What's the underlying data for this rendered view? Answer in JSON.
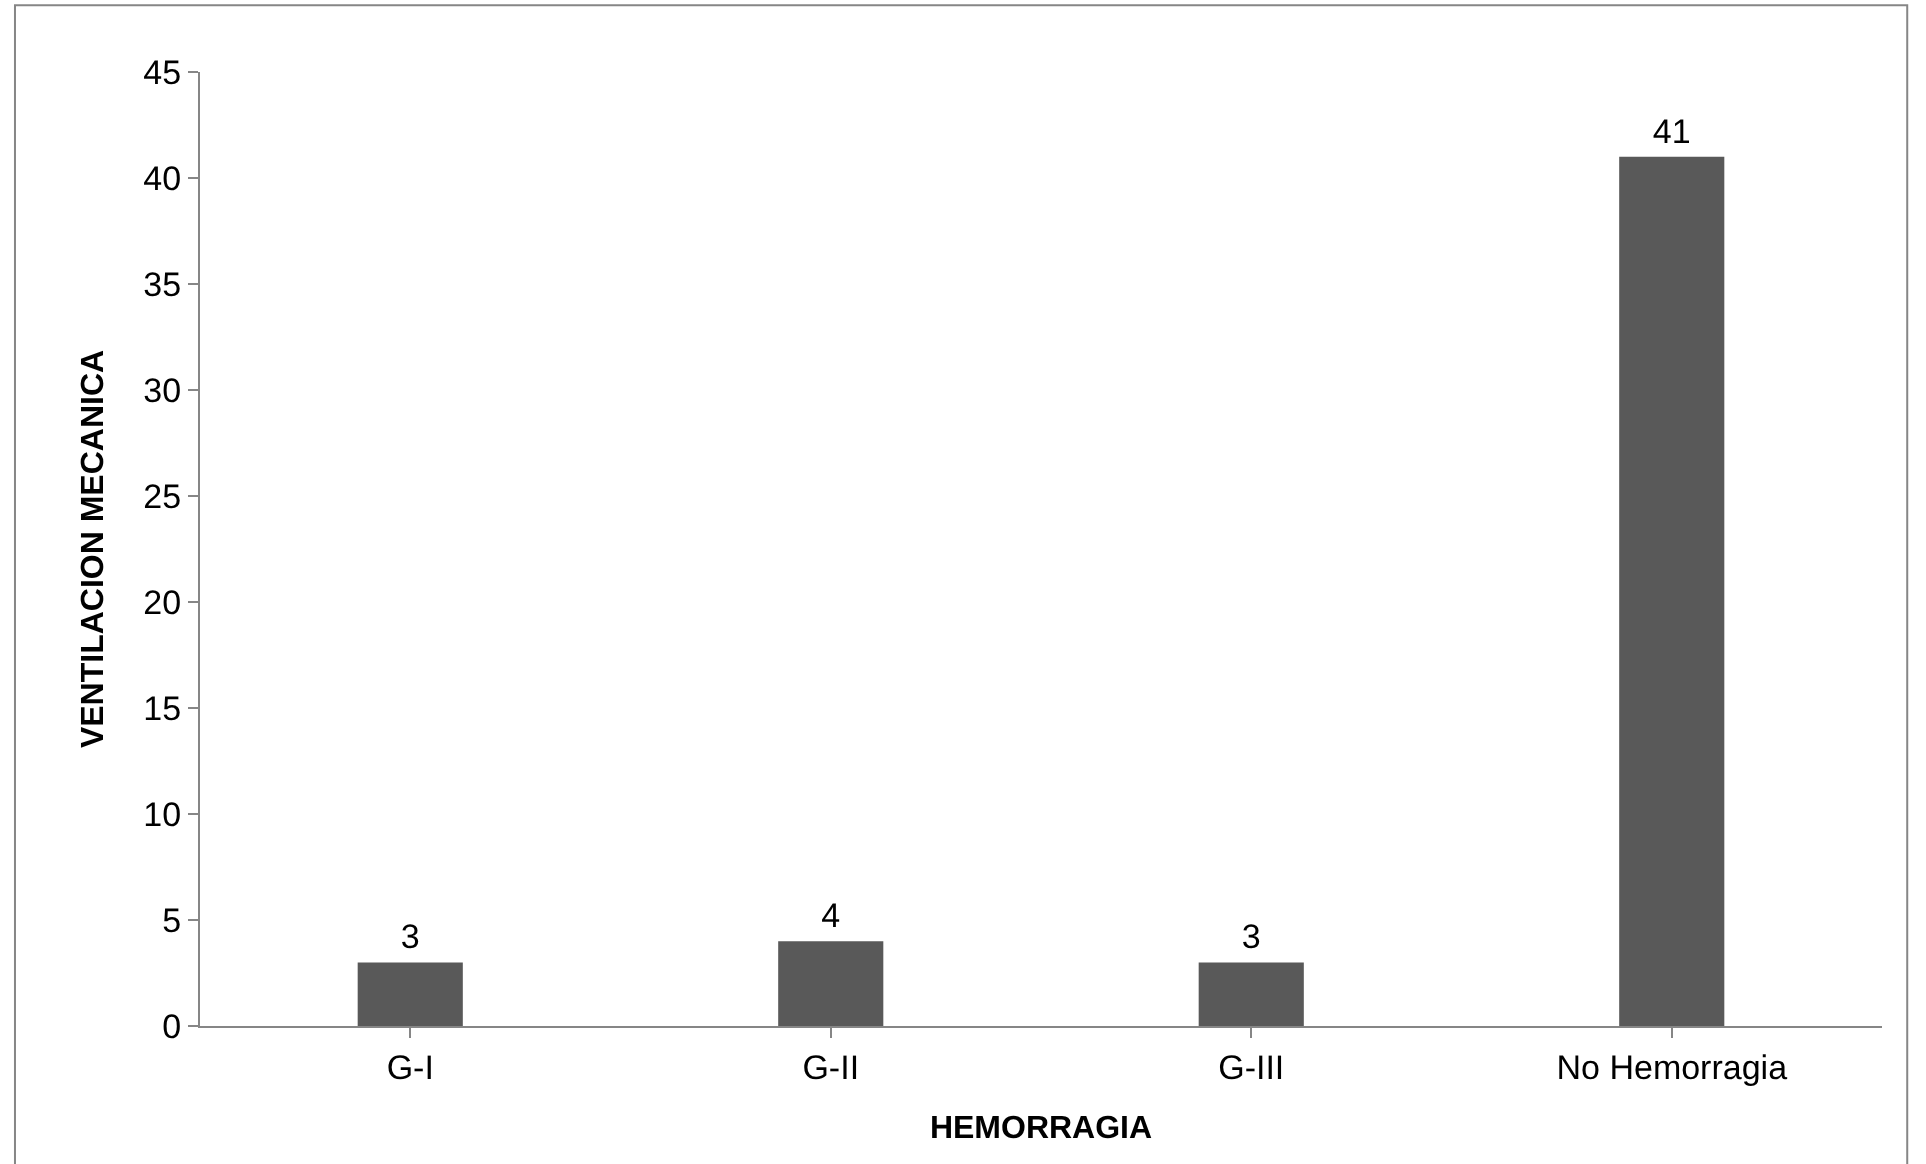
{
  "chart_data": {
    "type": "bar",
    "xlabel": "HEMORRAGIA",
    "ylabel": "VENTILACION MECANICA",
    "categories": [
      "G-I",
      "G-II",
      "G-III",
      "No Hemorragia"
    ],
    "values": [
      3,
      4,
      3,
      41
    ],
    "color": "#595959",
    "ylim": [
      0,
      45
    ],
    "yticks": [
      0,
      5,
      10,
      15,
      20,
      25,
      30,
      35,
      40,
      45
    ],
    "data_labels": true
  }
}
